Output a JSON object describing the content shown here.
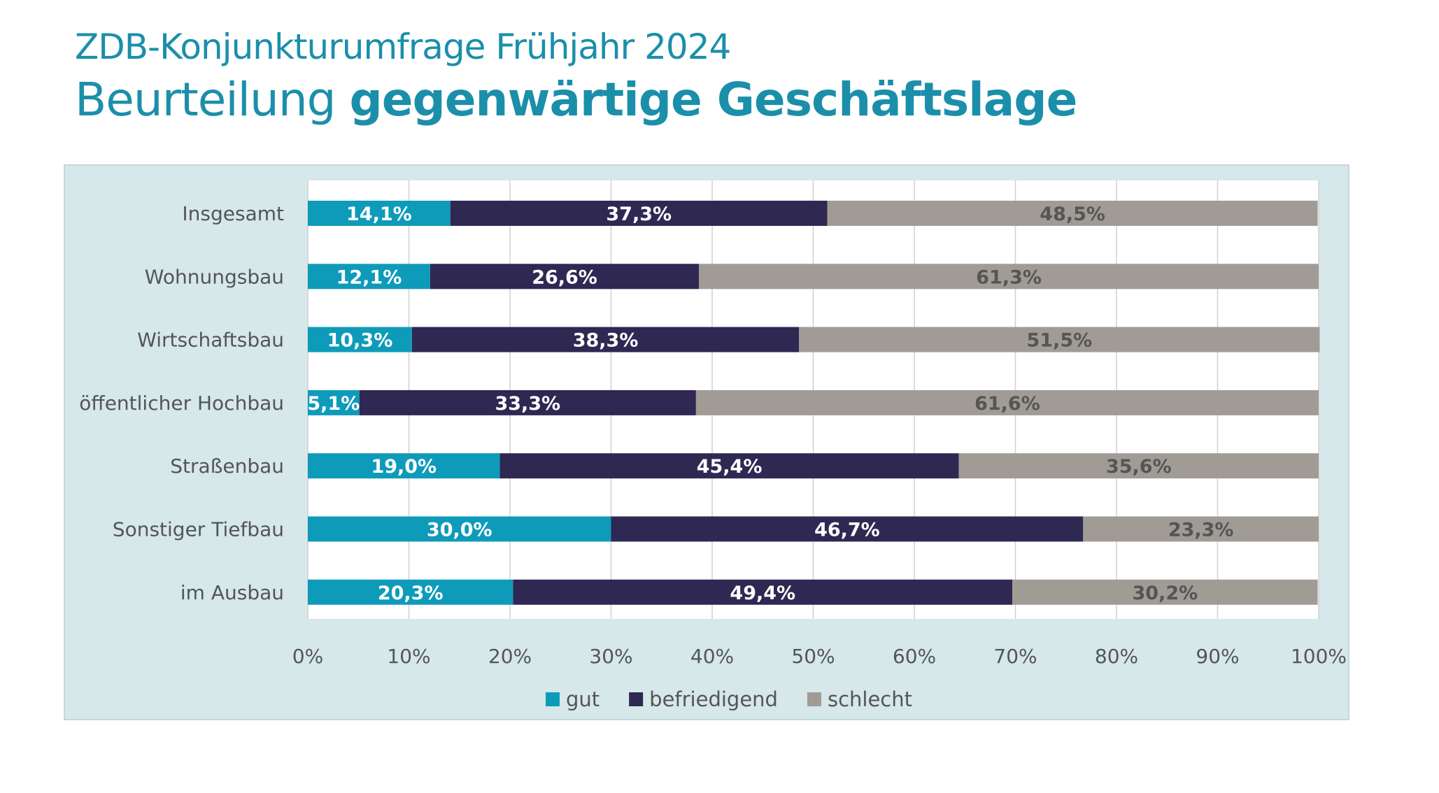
{
  "header": {
    "subtitle": "ZDB-Konjunkturumfrage Frühjahr 2024",
    "title_regular": "Beurteilung ",
    "title_bold": "gegenwärtige Geschäftslage"
  },
  "colors": {
    "gut": "#0e9bba",
    "befriedigend": "#2e2853",
    "schlecht": "#a19b95",
    "title": "#1b8faa",
    "panel": "#d6e8e9"
  },
  "chart_data": {
    "type": "bar",
    "orientation": "horizontal",
    "stacked": true,
    "categories": [
      "Insgesamt",
      "Wohnungsbau",
      "Wirtschaftsbau",
      "öffentlicher Hochbau",
      "Straßenbau",
      "Sonstiger Tiefbau",
      "im Ausbau"
    ],
    "series": [
      {
        "name": "gut",
        "values": [
          14.1,
          12.1,
          10.3,
          5.1,
          19.0,
          30.0,
          20.3
        ],
        "labels": [
          "14,1%",
          "12,1%",
          "10,3%",
          "5,1%",
          "19,0%",
          "30,0%",
          "20,3%"
        ]
      },
      {
        "name": "befriedigend",
        "values": [
          37.3,
          26.6,
          38.3,
          33.3,
          45.4,
          46.7,
          49.4
        ],
        "labels": [
          "37,3%",
          "26,6%",
          "38,3%",
          "33,3%",
          "45,4%",
          "46,7%",
          "49,4%"
        ]
      },
      {
        "name": "schlecht",
        "values": [
          48.5,
          61.3,
          51.5,
          61.6,
          35.6,
          23.3,
          30.2
        ],
        "labels": [
          "48,5%",
          "61,3%",
          "51,5%",
          "61,6%",
          "35,6%",
          "23,3%",
          "30,2%"
        ]
      }
    ],
    "xlim": [
      0,
      100
    ],
    "x_ticks": [
      "0%",
      "10%",
      "20%",
      "30%",
      "40%",
      "50%",
      "60%",
      "70%",
      "80%",
      "90%",
      "100%"
    ],
    "grid": true,
    "legend": "bottom"
  }
}
